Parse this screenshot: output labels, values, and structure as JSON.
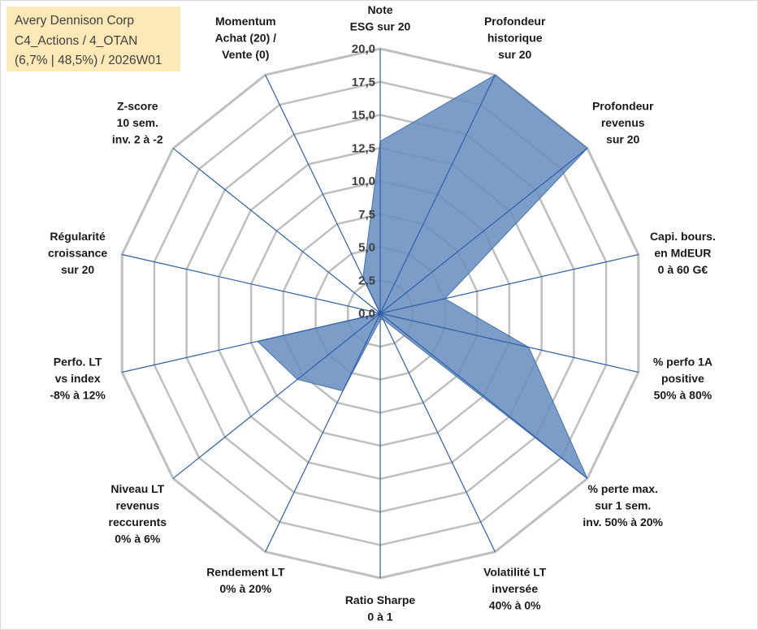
{
  "title_box": {
    "line1": "Avery Dennison Corp",
    "line2": "C4_Actions / 4_OTAN",
    "line3": "(6,7% | 48,5%) / 2026W01"
  },
  "colors": {
    "grid": "#bfbfbf",
    "spoke": "#2f5fa7",
    "fill": "#6a8fbf",
    "fill_stroke": "#4a72ad",
    "title_bg": "#fde9b8"
  },
  "chart_data": {
    "type": "radar",
    "title": "Avery Dennison Corp",
    "range": [
      0,
      20
    ],
    "ticks": [
      "0,0",
      "2,5",
      "5,0",
      "7,5",
      "10,0",
      "12,5",
      "15,0",
      "17,5",
      "20,0"
    ],
    "tick_values": [
      0,
      2.5,
      5,
      7.5,
      10,
      12.5,
      15,
      17.5,
      20
    ],
    "grid": true,
    "categories": [
      [
        "Note",
        "ESG sur 20"
      ],
      [
        "Profondeur",
        "historique",
        "sur 20"
      ],
      [
        "Profondeur",
        "revenus",
        "sur 20"
      ],
      [
        "Capi. bours.",
        "en MdEUR",
        "0 à 60 G€"
      ],
      [
        "% perfo 1A",
        "positive",
        "50% à 80%"
      ],
      [
        "% perte max.",
        "sur 1 sem.",
        "inv. 50% à 20%"
      ],
      [
        "Volatilité LT",
        "inversée",
        "40% à 0%"
      ],
      [
        "Ratio Sharpe",
        "0 à 1"
      ],
      [
        "Rendement LT",
        "0% à 20%"
      ],
      [
        "Niveau LT",
        "revenus",
        "reccurents",
        "0% à 6%"
      ],
      [
        "Perfo. LT",
        "vs index",
        "-8% à 12%"
      ],
      [
        "Régularité",
        "croissance",
        "sur 20"
      ],
      [
        "Z-score",
        "10 sem.",
        "inv. 2 à -2"
      ],
      [
        "Momentum",
        "Achat (20) /",
        "Vente (0)"
      ]
    ],
    "series": [
      {
        "name": "Avery Dennison Corp",
        "values": [
          13.0,
          20.0,
          20.0,
          5.0,
          11.5,
          20.0,
          0.5,
          0.5,
          6.5,
          8.0,
          9.5,
          0.0,
          0.0,
          3.0
        ]
      }
    ]
  }
}
